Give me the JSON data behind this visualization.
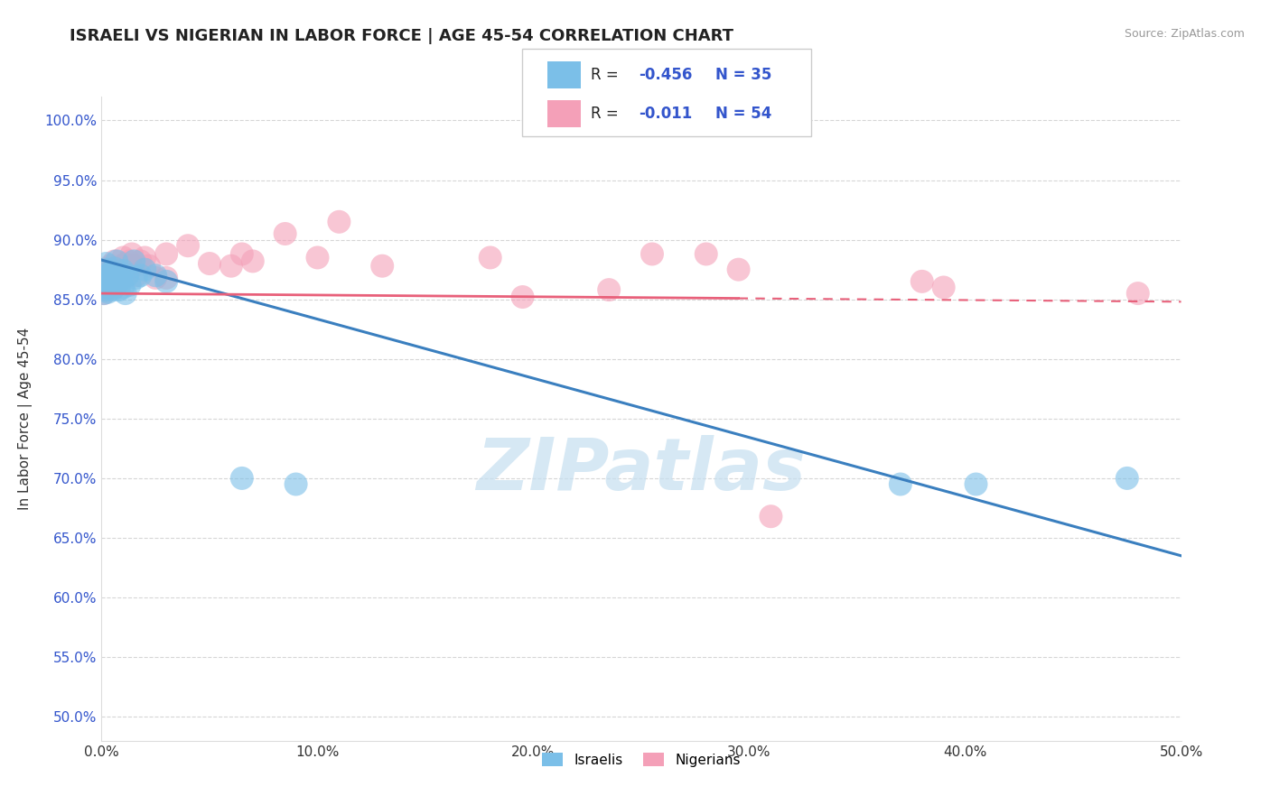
{
  "title": "ISRAELI VS NIGERIAN IN LABOR FORCE | AGE 45-54 CORRELATION CHART",
  "source_text": "Source: ZipAtlas.com",
  "ylabel": "In Labor Force | Age 45-54",
  "xlim": [
    0.0,
    0.5
  ],
  "ylim": [
    0.48,
    1.02
  ],
  "xtick_labels": [
    "0.0%",
    "10.0%",
    "20.0%",
    "30.0%",
    "40.0%",
    "50.0%"
  ],
  "xtick_vals": [
    0.0,
    0.1,
    0.2,
    0.3,
    0.4,
    0.5
  ],
  "ytick_labels": [
    "50.0%",
    "55.0%",
    "60.0%",
    "65.0%",
    "70.0%",
    "75.0%",
    "80.0%",
    "85.0%",
    "90.0%",
    "95.0%",
    "100.0%"
  ],
  "ytick_vals": [
    0.5,
    0.55,
    0.6,
    0.65,
    0.7,
    0.75,
    0.8,
    0.85,
    0.9,
    0.95,
    1.0
  ],
  "israeli_color": "#7bbfe8",
  "nigerian_color": "#f4a0b8",
  "israeli_trend_color": "#3a7fbf",
  "nigerian_trend_color": "#e8607a",
  "watermark": "ZIPatlas",
  "watermark_color": "#c5dff0",
  "r_color": "#3355cc",
  "legend_r_isr": "R = ",
  "legend_rv_isr": "-0.456",
  "legend_n_isr": "N = 35",
  "legend_r_nig": "R =  ",
  "legend_rv_nig": "-0.011",
  "legend_n_nig": "N = 54",
  "isr_trend_y0": 0.883,
  "isr_trend_y1": 0.635,
  "nig_trend_y0": 0.855,
  "nig_trend_y1": 0.848,
  "nig_trend_solid_x_end": 0.295,
  "israeli_dots_x": [
    0.001,
    0.001,
    0.002,
    0.002,
    0.002,
    0.003,
    0.003,
    0.003,
    0.004,
    0.004,
    0.005,
    0.005,
    0.006,
    0.006,
    0.007,
    0.007,
    0.008,
    0.008,
    0.009,
    0.01,
    0.01,
    0.011,
    0.012,
    0.013,
    0.015,
    0.016,
    0.018,
    0.02,
    0.025,
    0.03,
    0.065,
    0.09,
    0.37,
    0.405,
    0.475
  ],
  "israeli_dots_y": [
    0.86,
    0.855,
    0.875,
    0.88,
    0.858,
    0.862,
    0.87,
    0.856,
    0.865,
    0.872,
    0.858,
    0.868,
    0.876,
    0.86,
    0.882,
    0.865,
    0.87,
    0.858,
    0.866,
    0.874,
    0.86,
    0.855,
    0.87,
    0.862,
    0.882,
    0.868,
    0.87,
    0.875,
    0.87,
    0.865,
    0.7,
    0.695,
    0.695,
    0.695,
    0.7
  ],
  "nigerian_dots_x": [
    0.001,
    0.001,
    0.001,
    0.002,
    0.002,
    0.002,
    0.003,
    0.003,
    0.003,
    0.004,
    0.004,
    0.005,
    0.005,
    0.006,
    0.006,
    0.007,
    0.007,
    0.008,
    0.009,
    0.009,
    0.01,
    0.01,
    0.011,
    0.012,
    0.012,
    0.013,
    0.014,
    0.015,
    0.016,
    0.018,
    0.02,
    0.022,
    0.025,
    0.03,
    0.03,
    0.04,
    0.05,
    0.06,
    0.065,
    0.07,
    0.085,
    0.1,
    0.11,
    0.13,
    0.18,
    0.195,
    0.235,
    0.255,
    0.28,
    0.295,
    0.31,
    0.38,
    0.39,
    0.48
  ],
  "nigerian_dots_y": [
    0.855,
    0.862,
    0.858,
    0.87,
    0.865,
    0.86,
    0.875,
    0.868,
    0.862,
    0.878,
    0.87,
    0.865,
    0.872,
    0.882,
    0.876,
    0.868,
    0.862,
    0.87,
    0.878,
    0.865,
    0.885,
    0.875,
    0.88,
    0.87,
    0.875,
    0.882,
    0.888,
    0.878,
    0.87,
    0.882,
    0.885,
    0.878,
    0.868,
    0.888,
    0.868,
    0.895,
    0.88,
    0.878,
    0.888,
    0.882,
    0.905,
    0.885,
    0.915,
    0.878,
    0.885,
    0.852,
    0.858,
    0.888,
    0.888,
    0.875,
    0.668,
    0.865,
    0.86,
    0.855
  ],
  "background_color": "#ffffff"
}
